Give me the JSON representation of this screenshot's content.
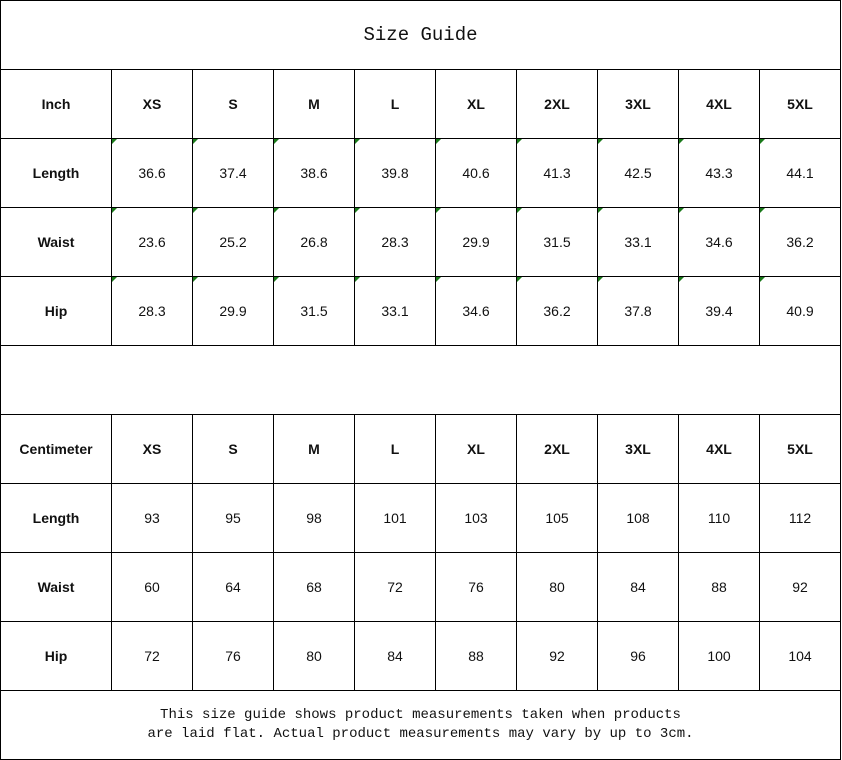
{
  "title": "Size Guide",
  "sizes": [
    "XS",
    "S",
    "M",
    "L",
    "XL",
    "2XL",
    "3XL",
    "4XL",
    "5XL"
  ],
  "inch": {
    "unit_label": "Inch",
    "rows": [
      {
        "label": "Length",
        "values": [
          "36.6",
          "37.4",
          "38.6",
          "39.8",
          "40.6",
          "41.3",
          "42.5",
          "43.3",
          "44.1"
        ]
      },
      {
        "label": "Waist",
        "values": [
          "23.6",
          "25.2",
          "26.8",
          "28.3",
          "29.9",
          "31.5",
          "33.1",
          "34.6",
          "36.2"
        ]
      },
      {
        "label": "Hip",
        "values": [
          "28.3",
          "29.9",
          "31.5",
          "33.1",
          "34.6",
          "36.2",
          "37.8",
          "39.4",
          "40.9"
        ]
      }
    ]
  },
  "cm": {
    "unit_label": "Centimeter",
    "rows": [
      {
        "label": "Length",
        "values": [
          "93",
          "95",
          "98",
          "101",
          "103",
          "105",
          "108",
          "110",
          "112"
        ]
      },
      {
        "label": "Waist",
        "values": [
          "60",
          "64",
          "68",
          "72",
          "76",
          "80",
          "84",
          "88",
          "92"
        ]
      },
      {
        "label": "Hip",
        "values": [
          "72",
          "76",
          "80",
          "84",
          "88",
          "92",
          "96",
          "100",
          "104"
        ]
      }
    ]
  },
  "footer": {
    "line1": "This size guide shows product measurements taken when products",
    "line2": "are laid flat. Actual product measurements may vary by up to 3cm."
  },
  "colors": {
    "note_marker": "#1a7a1a"
  }
}
